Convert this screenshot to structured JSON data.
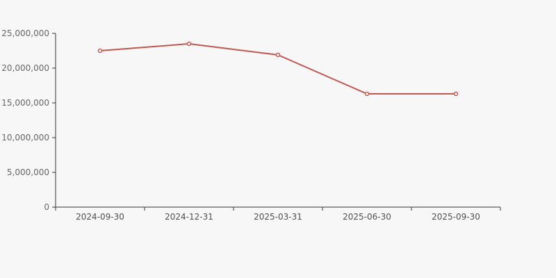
{
  "page": {
    "background_color": "#f7f7f7"
  },
  "chart_data": {
    "type": "line",
    "title": "",
    "xlabel": "",
    "ylabel": "",
    "categories": [
      "2024-09-30",
      "2024-12-31",
      "2025-03-31",
      "2025-06-30",
      "2025-09-30"
    ],
    "series": [
      {
        "name": "series-1",
        "values": [
          22500000,
          23500000,
          21900000,
          16300000,
          16300000
        ]
      }
    ],
    "ylim": [
      0,
      25000000
    ],
    "y_tick_interval": 5000000,
    "y_tick_values": [
      0,
      5000000,
      10000000,
      15000000,
      20000000,
      25000000
    ],
    "y_tick_labels": [
      "0",
      "5,000,000",
      "10,000,000",
      "15,000,000",
      "20,000,000",
      "25,000,000"
    ],
    "grid": false,
    "legend_position": "none",
    "line_color": "#c25650",
    "marker_fill": "#ffffff",
    "axis_color": "#333333",
    "y_label_color": "#666666",
    "x_label_color": "#4f4f4f"
  }
}
